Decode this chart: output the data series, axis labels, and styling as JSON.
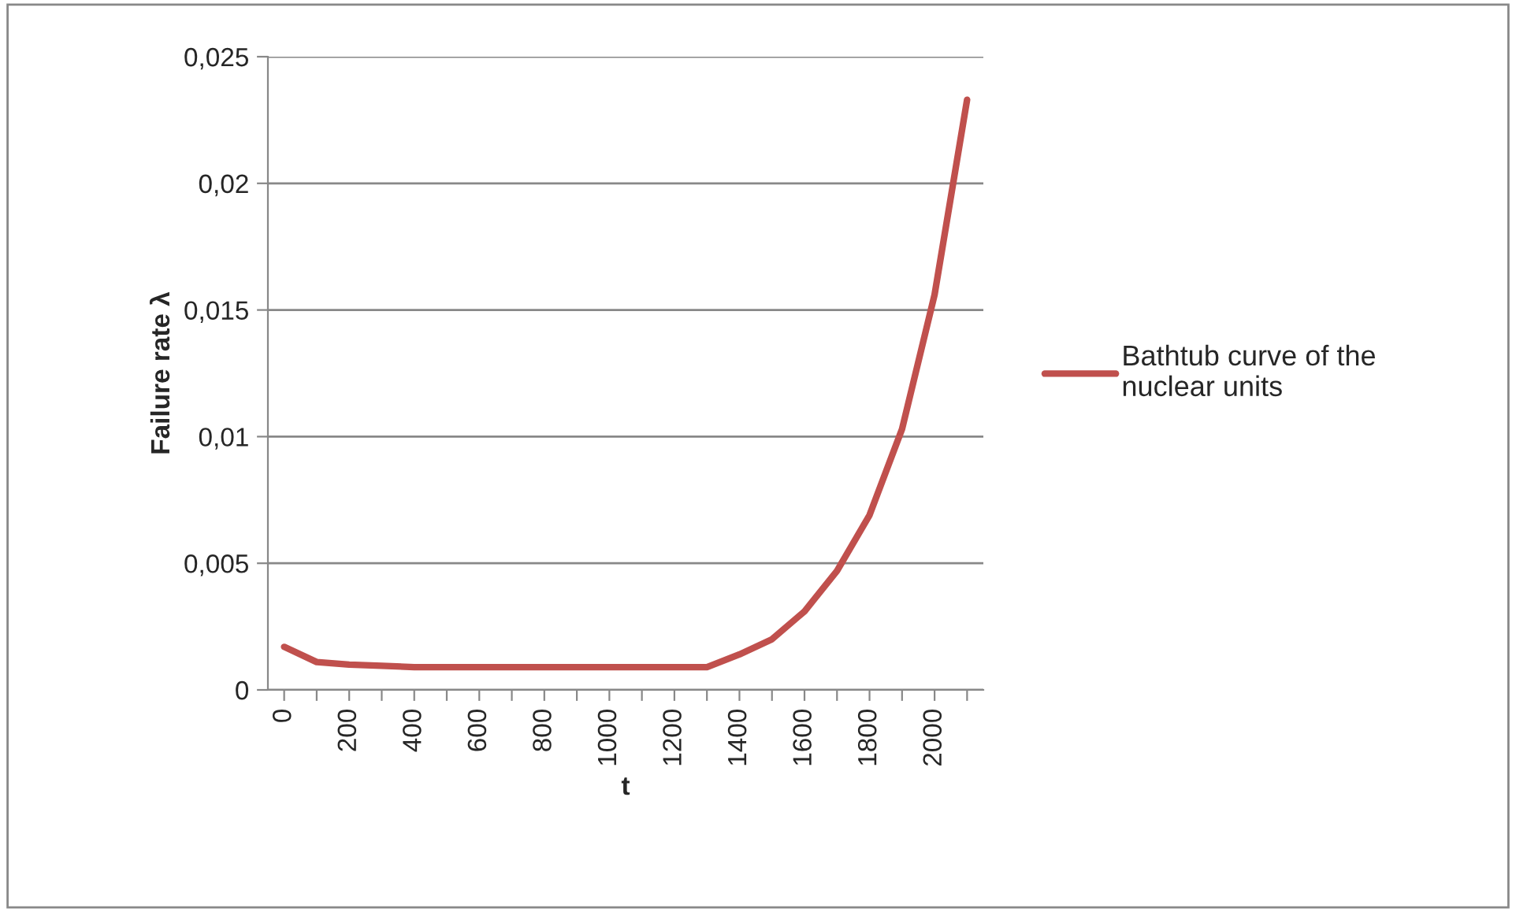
{
  "chart_data": {
    "type": "line",
    "xlabel": "t",
    "ylabel": "Failure rate λ",
    "categories": [
      "0",
      null,
      "200",
      null,
      "400",
      null,
      "600",
      null,
      "800",
      null,
      "1000",
      null,
      "1200",
      null,
      "1400",
      null,
      "1600",
      null,
      "1800",
      null,
      "2000",
      null
    ],
    "series": [
      {
        "name": "Bathtub curve of the nuclear units",
        "color": "#c0504d",
        "values": [
          0.0017,
          0.0011,
          0.001,
          0.00095,
          0.0009,
          0.0009,
          0.0009,
          0.0009,
          0.0009,
          0.0009,
          0.0009,
          0.0009,
          0.0009,
          0.0009,
          0.0014,
          0.002,
          0.0031,
          0.0047,
          0.0069,
          0.0103,
          0.0156,
          0.0233
        ]
      }
    ],
    "ylim": [
      0,
      0.025
    ],
    "yticks": [
      {
        "value": 0,
        "label": "0"
      },
      {
        "value": 0.005,
        "label": "0,005"
      },
      {
        "value": 0.01,
        "label": "0,01"
      },
      {
        "value": 0.015,
        "label": "0,015"
      },
      {
        "value": 0.02,
        "label": "0,02"
      },
      {
        "value": 0.025,
        "label": "0,025"
      }
    ],
    "grid": "y",
    "legend": "right",
    "marker": "none",
    "line_style": "solid"
  }
}
